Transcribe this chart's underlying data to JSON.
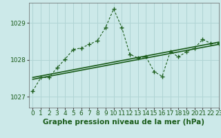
{
  "title": "Graphe pression niveau de la mer (hPa)",
  "bg_color": "#cce9e9",
  "grid_color": "#b0d4d4",
  "line_color": "#1a5c1a",
  "xlim": [
    -0.5,
    23
  ],
  "ylim": [
    1026.7,
    1029.55
  ],
  "yticks": [
    1027,
    1028,
    1029
  ],
  "xticks": [
    0,
    1,
    2,
    3,
    4,
    5,
    6,
    7,
    8,
    9,
    10,
    11,
    12,
    13,
    14,
    15,
    16,
    17,
    18,
    19,
    20,
    21,
    22,
    23
  ],
  "main_x": [
    0,
    1,
    2,
    3,
    4,
    5,
    6,
    7,
    8,
    9,
    10,
    11,
    12,
    13,
    14,
    15,
    16,
    17,
    18,
    19,
    20,
    21,
    22,
    23
  ],
  "main_y": [
    1027.15,
    1027.52,
    1027.52,
    1027.78,
    1028.02,
    1028.28,
    1028.32,
    1028.42,
    1028.52,
    1028.88,
    1029.38,
    1028.88,
    1028.15,
    1028.05,
    1028.08,
    1027.68,
    1027.55,
    1028.22,
    1028.08,
    1028.22,
    1028.32,
    1028.55,
    1028.45,
    1028.45
  ],
  "trend1_x": [
    0,
    23
  ],
  "trend1_y": [
    1027.52,
    1028.48
  ],
  "trend2_x": [
    0,
    23
  ],
  "trend2_y": [
    1027.47,
    1028.42
  ],
  "label_color": "#1a5c1a",
  "label_fontsize": 7.5,
  "tick_fontsize": 6.5
}
